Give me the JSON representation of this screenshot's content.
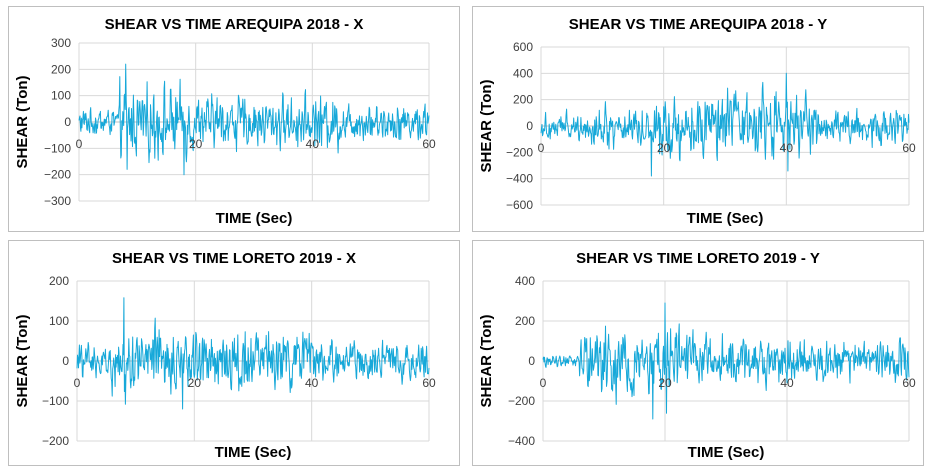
{
  "colors": {
    "series": "#16a8d9",
    "grid": "#d9d9d9",
    "zero": "#bfbfbf",
    "border": "#bfbfbf"
  },
  "chart_data": [
    {
      "type": "line",
      "title": "SHEAR VS TIME AREQUIPA 2018 - X",
      "xlabel": "TIME (Sec)",
      "ylabel": "SHEAR (Ton)",
      "xlim": [
        0,
        60
      ],
      "ylim": [
        -300,
        300
      ],
      "xticks": [
        0,
        20,
        40,
        60
      ],
      "yticks": [
        -300,
        -200,
        -100,
        0,
        100,
        200,
        300
      ],
      "grid": true,
      "series": [
        {
          "values_description_only": "",
          "peak_max": 220,
          "peak_min": -200,
          "t_peak_max": 8
        }
      ]
    },
    {
      "type": "line",
      "title": "SHEAR VS TIME AREQUIPA 2018 - Y",
      "xlabel": "TIME (Sec)",
      "ylabel": "SHEAR (Ton)",
      "xlim": [
        0,
        60
      ],
      "ylim": [
        -600,
        600
      ],
      "xticks": [
        0,
        20,
        40,
        60
      ],
      "yticks": [
        -600,
        -400,
        -200,
        0,
        200,
        400,
        600
      ],
      "grid": true,
      "series": [
        {
          "values_description_only": "",
          "peak_max": 400,
          "peak_min": -380,
          "t_peak_max": 40
        }
      ]
    },
    {
      "type": "line",
      "title": "SHEAR VS TIME LORETO 2019 - X",
      "xlabel": "TIME (Sec)",
      "ylabel": "SHEAR (Ton)",
      "xlim": [
        0,
        60
      ],
      "ylim": [
        -200,
        200
      ],
      "xticks": [
        0,
        20,
        40,
        60
      ],
      "yticks": [
        -200,
        -100,
        0,
        100,
        200
      ],
      "grid": true,
      "series": [
        {
          "values_description_only": "",
          "peak_max": 158,
          "peak_min": -120,
          "t_peak_max": 8
        }
      ]
    },
    {
      "type": "line",
      "title": "SHEAR VS TIME LORETO 2019 - Y",
      "xlabel": "TIME (Sec)",
      "ylabel": "SHEAR (Ton)",
      "xlim": [
        0,
        60
      ],
      "ylim": [
        -400,
        400
      ],
      "xticks": [
        0,
        20,
        40,
        60
      ],
      "yticks": [
        -400,
        -200,
        0,
        200,
        400
      ],
      "grid": true,
      "series": [
        {
          "values_description_only": "",
          "peak_max": 290,
          "peak_min": -290,
          "t_peak_max": 20
        }
      ]
    }
  ]
}
